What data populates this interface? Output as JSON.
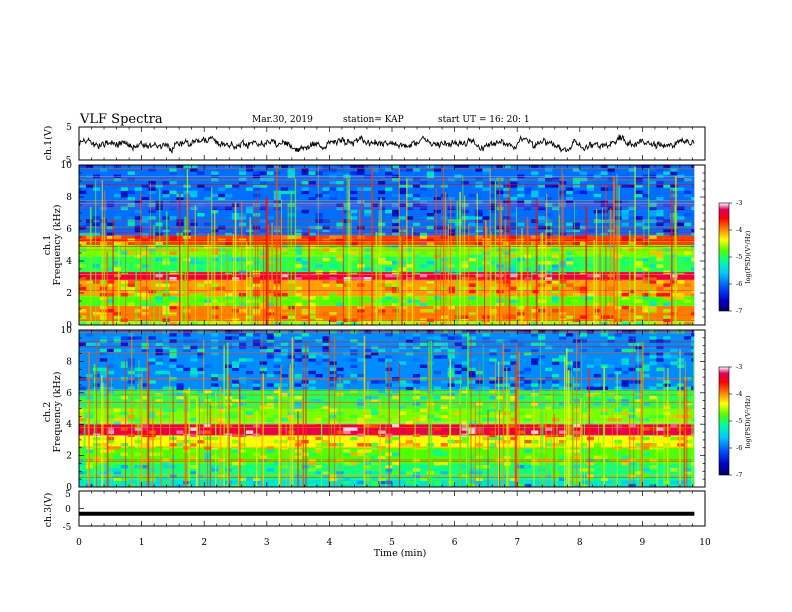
{
  "header": {
    "title": "VLF Spectra",
    "date": "Mar.30, 2019",
    "station": "station= KAP",
    "start_ut": "start  UT =   16: 20: 1"
  },
  "colors": {
    "waveform": "#000000",
    "colormap": [
      "#000060",
      "#0000c8",
      "#0050ff",
      "#00c8ff",
      "#00ffa0",
      "#50ff00",
      "#ffff00",
      "#ff8000",
      "#ff0000",
      "#e00060",
      "#ffffff"
    ]
  },
  "chart_data": [
    {
      "type": "line",
      "name": "ch1-waveform",
      "ylabel": "ch.1(V)",
      "ylim": [
        -5,
        5
      ],
      "yticks": [
        "5",
        "-5"
      ],
      "xlim": [
        0,
        10
      ],
      "trace_extent_min": [
        0,
        9.83
      ],
      "baseline_v": 0.0,
      "fluctuation_v": 2.5
    },
    {
      "type": "heatmap",
      "name": "ch1-spectrogram",
      "ylabel": "ch.1\nFrequency (kHz)",
      "ylim": [
        0,
        10
      ],
      "yticks": [
        "0",
        "2",
        "4",
        "6",
        "8",
        "10"
      ],
      "colorbar": {
        "label": "log(PSD)(V²/Hz)",
        "range": [
          -7,
          -3
        ],
        "ticks": [
          "-3",
          "-4",
          "-5",
          "-6",
          "-7"
        ]
      },
      "bands_khz": [
        {
          "f": [
            0.0,
            0.3
          ],
          "level": -4.8
        },
        {
          "f": [
            0.3,
            1.2
          ],
          "level": -4.2
        },
        {
          "f": [
            1.2,
            1.8
          ],
          "level": -5.0
        },
        {
          "f": [
            1.8,
            2.8
          ],
          "level": -4.3
        },
        {
          "f": [
            2.8,
            3.3
          ],
          "level": -3.6
        },
        {
          "f": [
            3.3,
            4.3
          ],
          "level": -5.2
        },
        {
          "f": [
            4.3,
            5.0
          ],
          "level": -4.9
        },
        {
          "f": [
            5.0,
            5.6
          ],
          "level": -4.0
        },
        {
          "f": [
            5.6,
            10.0
          ],
          "level": -6.1
        }
      ]
    },
    {
      "type": "heatmap",
      "name": "ch2-spectrogram",
      "ylabel": "ch.2\nFrequency (kHz)",
      "ylim": [
        0,
        10
      ],
      "yticks": [
        "0",
        "2",
        "4",
        "6",
        "8",
        "10"
      ],
      "colorbar": {
        "label": "log(PSD)(V²/Hz)",
        "range": [
          -7,
          -3
        ],
        "ticks": [
          "-3",
          "-4",
          "-5",
          "-6",
          "-7"
        ]
      },
      "bands_khz": [
        {
          "f": [
            0.0,
            0.5
          ],
          "level": -5.6
        },
        {
          "f": [
            0.5,
            1.5
          ],
          "level": -5.3
        },
        {
          "f": [
            1.5,
            2.5
          ],
          "level": -5.0
        },
        {
          "f": [
            2.5,
            3.3
          ],
          "level": -4.6
        },
        {
          "f": [
            3.3,
            4.0
          ],
          "level": -3.5
        },
        {
          "f": [
            4.0,
            5.0
          ],
          "level": -4.9
        },
        {
          "f": [
            5.0,
            6.2
          ],
          "level": -5.2
        },
        {
          "f": [
            6.2,
            10.0
          ],
          "level": -6.0
        }
      ]
    },
    {
      "type": "line",
      "name": "ch3-waveform",
      "ylabel": "ch.3(V)",
      "xlabel": "Time (min)",
      "ylim": [
        -5,
        5
      ],
      "yticks": [
        "5",
        "0",
        "-5"
      ],
      "xlim": [
        0,
        10
      ],
      "xticks": [
        "0",
        "1",
        "2",
        "3",
        "4",
        "5",
        "6",
        "7",
        "8",
        "9",
        "10"
      ],
      "trace_extent_min": [
        0,
        9.83
      ],
      "baseline_v": -1.5
    }
  ]
}
